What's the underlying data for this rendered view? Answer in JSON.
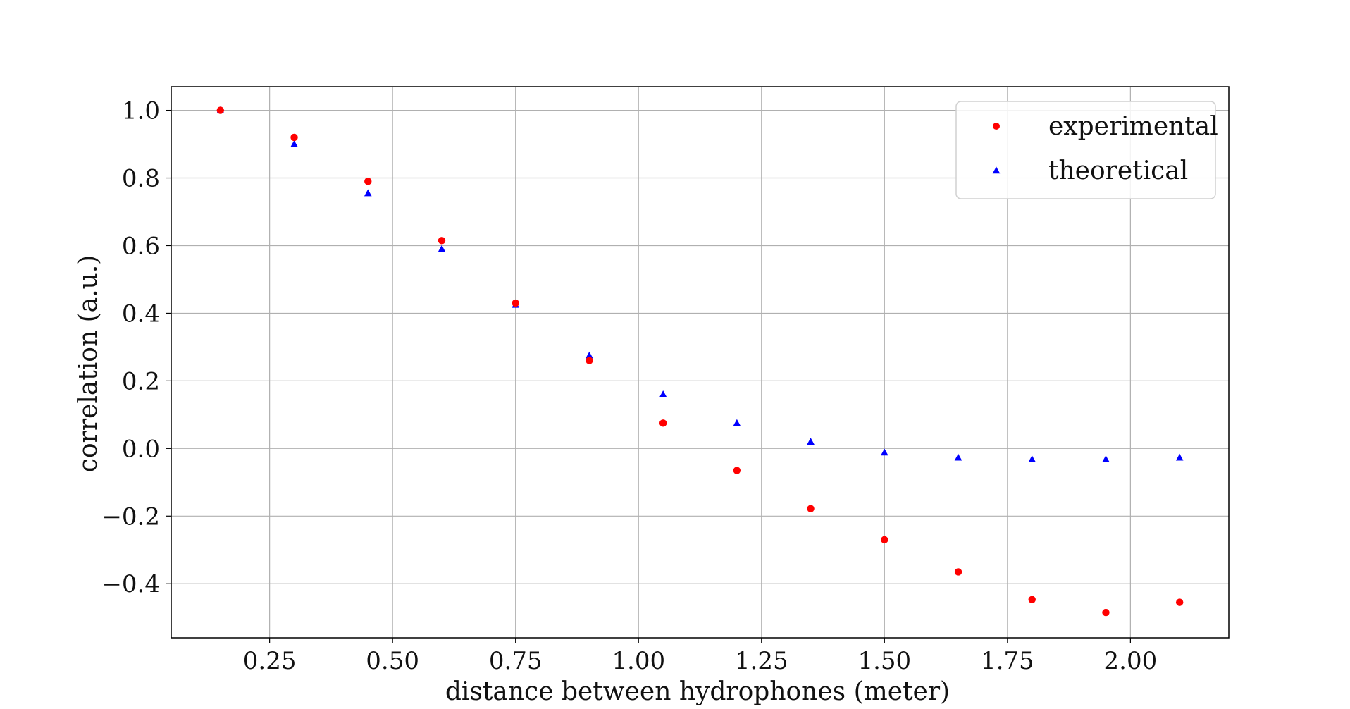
{
  "chart_data": {
    "type": "scatter",
    "xlabel": "distance between hydrophones (meter)",
    "ylabel": "correlation (a.u.)",
    "xlim": [
      0.05,
      2.2
    ],
    "ylim": [
      -0.56,
      1.07
    ],
    "grid": true,
    "legend_position": "top-right",
    "x_ticks": [
      0.25,
      0.5,
      0.75,
      1.0,
      1.25,
      1.5,
      1.75,
      2.0
    ],
    "x_tick_labels": [
      "0.25",
      "0.50",
      "0.75",
      "1.00",
      "1.25",
      "1.50",
      "1.75",
      "2.00"
    ],
    "y_ticks": [
      1.0,
      0.8,
      0.6,
      0.4,
      0.2,
      0.0,
      -0.2,
      -0.4
    ],
    "y_tick_labels": [
      "1.0",
      "0.8",
      "0.6",
      "0.4",
      "0.2",
      "0.0",
      "−0.2",
      "−0.4"
    ],
    "x": [
      0.15,
      0.3,
      0.45,
      0.6,
      0.75,
      0.9,
      1.05,
      1.2,
      1.35,
      1.5,
      1.65,
      1.8,
      1.95,
      2.1
    ],
    "series": [
      {
        "name": "experimental",
        "marker": "circle",
        "color": "#ff0000",
        "values": [
          1.0,
          0.92,
          0.79,
          0.615,
          0.43,
          0.26,
          0.075,
          -0.065,
          -0.178,
          -0.27,
          -0.365,
          -0.447,
          -0.485,
          -0.455
        ]
      },
      {
        "name": "theoretical",
        "marker": "triangle",
        "color": "#0000ff",
        "values": [
          1.0,
          0.9,
          0.755,
          0.59,
          0.425,
          0.275,
          0.16,
          0.075,
          0.02,
          -0.012,
          -0.027,
          -0.032,
          -0.032,
          -0.027
        ]
      }
    ]
  }
}
